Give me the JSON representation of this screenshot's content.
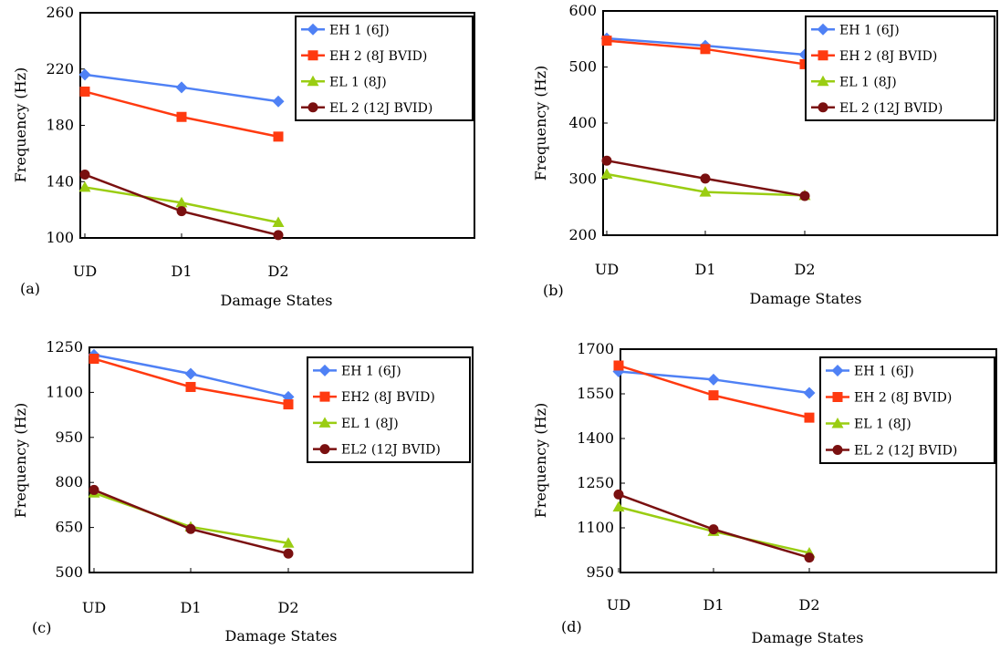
{
  "chart_data": [
    {
      "type": "line",
      "panel_label": "(a)",
      "categories": [
        "UD",
        "D1",
        "D2"
      ],
      "xlabel": "Damage States",
      "ylabel": "Frequency (Hz)",
      "ylim": [
        100,
        260
      ],
      "yticks": [
        100,
        140,
        180,
        220,
        260
      ],
      "legend_position": "top-right",
      "series": [
        {
          "name": "EH 1 (6J)",
          "color": "#4f81f5",
          "marker": "diamond",
          "values": [
            216,
            207,
            197
          ]
        },
        {
          "name": "EH 2 (8J BVID)",
          "color": "#ff3a10",
          "marker": "square",
          "values": [
            204,
            186,
            172
          ]
        },
        {
          "name": "EL 1 (8J)",
          "color": "#9acd12",
          "marker": "triangle",
          "values": [
            136,
            125,
            111
          ]
        },
        {
          "name": "EL 2 (12J BVID)",
          "color": "#7a1010",
          "marker": "circle",
          "values": [
            145,
            119,
            102
          ]
        }
      ]
    },
    {
      "type": "line",
      "panel_label": "(b)",
      "categories": [
        "UD",
        "D1",
        "D2"
      ],
      "xlabel": "Damage States",
      "ylabel": "Frequency (Hz)",
      "ylim": [
        200,
        600
      ],
      "yticks": [
        200,
        300,
        400,
        500,
        600
      ],
      "legend_position": "top-right",
      "series": [
        {
          "name": "EH 1 (6J)",
          "color": "#4f81f5",
          "marker": "diamond",
          "values": [
            551,
            538,
            522
          ]
        },
        {
          "name": "EH 2 (8J BVID)",
          "color": "#ff3a10",
          "marker": "square",
          "values": [
            547,
            532,
            505
          ]
        },
        {
          "name": "EL 1 (8J)",
          "color": "#9acd12",
          "marker": "triangle",
          "values": [
            309,
            277,
            271
          ]
        },
        {
          "name": "EL 2 (12J BVID)",
          "color": "#7a1010",
          "marker": "circle",
          "values": [
            333,
            301,
            270
          ]
        }
      ]
    },
    {
      "type": "line",
      "panel_label": "(c)",
      "categories": [
        "UD",
        "D1",
        "D2"
      ],
      "xlabel": "Damage States",
      "ylabel": "Frequency (Hz)",
      "ylim": [
        500,
        1250
      ],
      "yticks": [
        500,
        650,
        800,
        950,
        1100,
        1250
      ],
      "legend_position": "top-right",
      "series": [
        {
          "name": "EH 1 (6J)",
          "color": "#4f81f5",
          "marker": "diamond",
          "values": [
            1225,
            1162,
            1085
          ]
        },
        {
          "name": "EH2 (8J BVID)",
          "color": "#ff3a10",
          "marker": "square",
          "values": [
            1212,
            1118,
            1060
          ]
        },
        {
          "name": "EL 1 (8J)",
          "color": "#9acd12",
          "marker": "triangle",
          "values": [
            765,
            652,
            598
          ]
        },
        {
          "name": "EL2 (12J BVID)",
          "color": "#7a1010",
          "marker": "circle",
          "values": [
            775,
            645,
            563
          ]
        }
      ]
    },
    {
      "type": "line",
      "panel_label": "(d)",
      "categories": [
        "UD",
        "D1",
        "D2"
      ],
      "xlabel": "Damage States",
      "ylabel": "Frequency (Hz)",
      "ylim": [
        950,
        1700
      ],
      "yticks": [
        950,
        1100,
        1250,
        1400,
        1550,
        1700
      ],
      "legend_position": "top-right",
      "series": [
        {
          "name": "EH 1 (6J)",
          "color": "#4f81f5",
          "marker": "diamond",
          "values": [
            1625,
            1598,
            1553
          ]
        },
        {
          "name": "EH 2 (8J BVID)",
          "color": "#ff3a10",
          "marker": "square",
          "values": [
            1645,
            1545,
            1470
          ]
        },
        {
          "name": "EL 1 (8J)",
          "color": "#9acd12",
          "marker": "triangle",
          "values": [
            1170,
            1088,
            1016
          ]
        },
        {
          "name": "EL 2 (12J BVID)",
          "color": "#7a1010",
          "marker": "circle",
          "values": [
            1212,
            1095,
            1000
          ]
        }
      ]
    }
  ]
}
